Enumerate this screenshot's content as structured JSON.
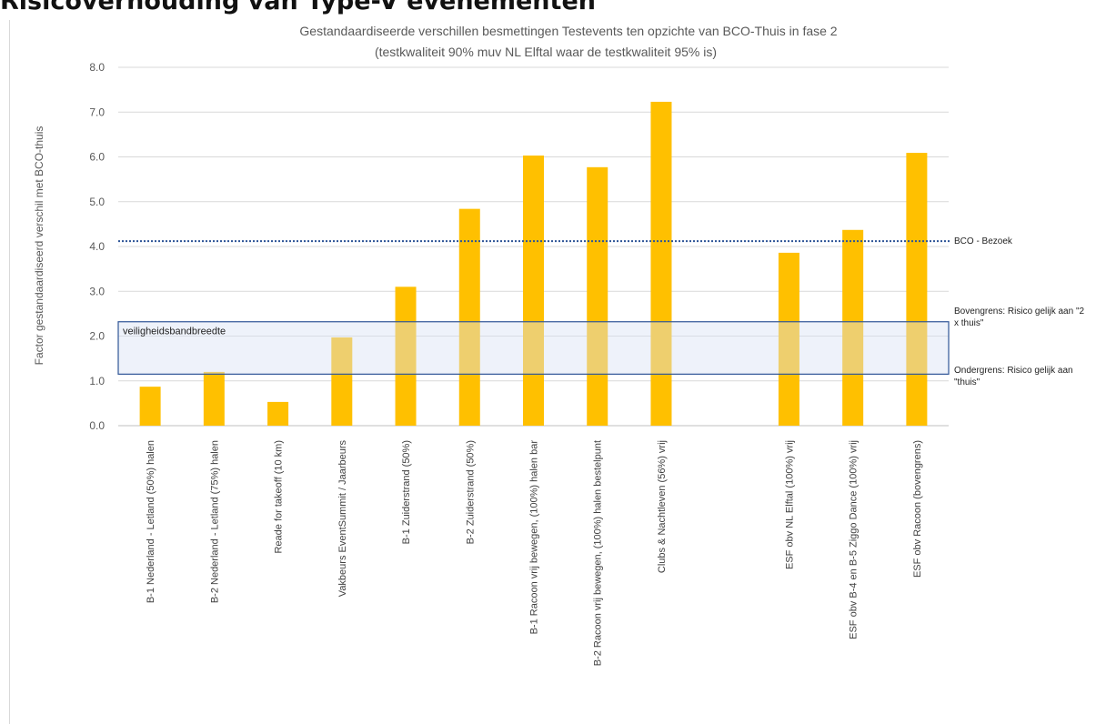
{
  "page": {
    "heading": "Risicoverhouding van Type-V evenementen"
  },
  "chart_data": {
    "type": "bar",
    "title": "Gestandaardiseerde verschillen besmettingen Testevents ten opzichte van BCO-Thuis in fase 2",
    "subtitle": "(testkwaliteit 90% muv NL Elftal waar de testkwaliteit 95% is)",
    "ylabel": "Factor gestandaardiseerd verschil met BCO-thuis",
    "xlabel": "",
    "ylim": [
      0,
      8
    ],
    "yticks": [
      "0.0",
      "1.0",
      "2.0",
      "3.0",
      "4.0",
      "5.0",
      "6.0",
      "7.0",
      "8.0"
    ],
    "grid": true,
    "categories": [
      "B-1 Nederland - Letland (50%) halen",
      "B-2 Nederland - Letland (75%) halen",
      "Reade for takeoff (10 km)",
      "Vakbeurs EventSummit / Jaarbeurs",
      "B-1 Zuiderstrand (50%)",
      "B-2 Zuiderstrand (50%)",
      "B-1 Racoon vrij bewegen, (100%) halen bar",
      "B-2 Racoon vrij bewegen, (100%) halen bestelpunt",
      "Clubs & Nachtleven (56%) vrij",
      "",
      "ESF obv NL Elftal (100%) vrij",
      "ESF obv B-4 en B-5 Ziggo Dance (100%) vrij",
      "ESF obv Racoon (bovengrens)"
    ],
    "values": [
      0.87,
      1.2,
      0.53,
      1.97,
      3.1,
      4.84,
      6.03,
      5.77,
      7.23,
      null,
      3.86,
      4.37,
      6.09
    ],
    "bar_color": "#FFC000",
    "reference_line": {
      "label": "BCO - Bezoek",
      "value": 4.12,
      "color": "#2F5597"
    },
    "band": {
      "label": "veiligheidsbandbreedte",
      "lower": 1.15,
      "upper": 2.32,
      "upper_label": "Bovengrens: Risico gelijk aan \"2 x thuis\"",
      "lower_label": "Ondergrens: Risico gelijk aan \"thuis\"",
      "fill": "#DAE3F3",
      "stroke": "#2F5597"
    }
  }
}
